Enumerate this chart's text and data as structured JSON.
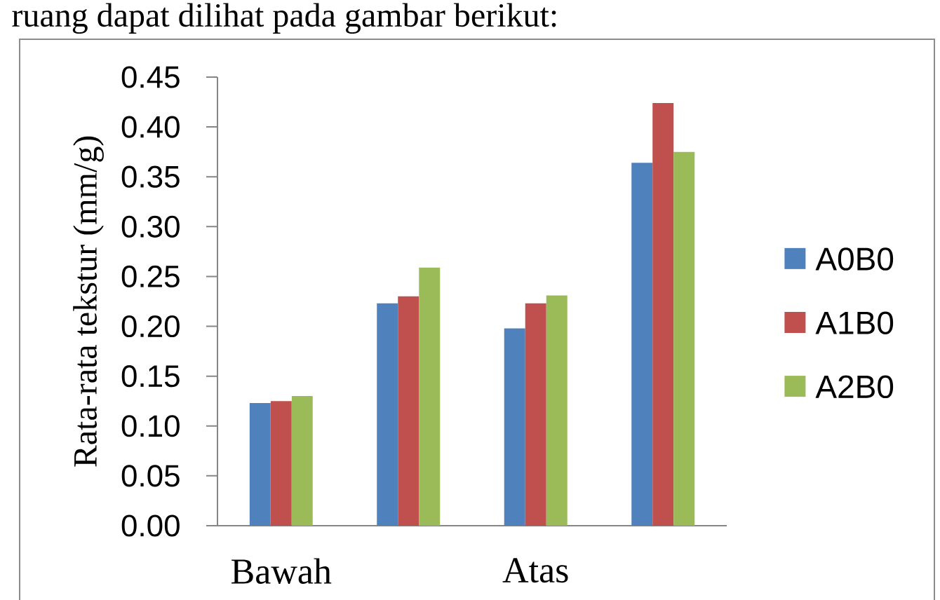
{
  "chart_data": {
    "type": "bar",
    "ylabel": "Rata-rata tekstur (mm/g)",
    "annotations": [
      "ruang dapat dilihat pada gambar berikut:"
    ],
    "categories": [
      "Bawah",
      null,
      "Atas",
      null
    ],
    "series": [
      {
        "name": "A0B0",
        "color": "#4f81bd",
        "values": [
          0.123,
          0.223,
          0.198,
          0.364
        ]
      },
      {
        "name": "A1B0",
        "color": "#c0504d",
        "values": [
          0.125,
          0.23,
          0.223,
          0.424
        ]
      },
      {
        "name": "A2B0",
        "color": "#9bbb59",
        "values": [
          0.13,
          0.259,
          0.231,
          0.375
        ]
      }
    ],
    "ylim": [
      0,
      0.45
    ],
    "yticks": [
      {
        "value": 0,
        "label": "0.00"
      },
      {
        "value": 0.05,
        "label": "0.05"
      },
      {
        "value": 0.1,
        "label": "0.10"
      },
      {
        "value": 0.15,
        "label": "0.15"
      },
      {
        "value": 0.2,
        "label": "0.20"
      },
      {
        "value": 0.25,
        "label": "0.25"
      },
      {
        "value": 0.3,
        "label": "0.30"
      },
      {
        "value": 0.35,
        "label": "0.35"
      },
      {
        "value": 0.4,
        "label": "0.40"
      },
      {
        "value": 0.45,
        "label": "0.45"
      }
    ],
    "legend": "right"
  }
}
